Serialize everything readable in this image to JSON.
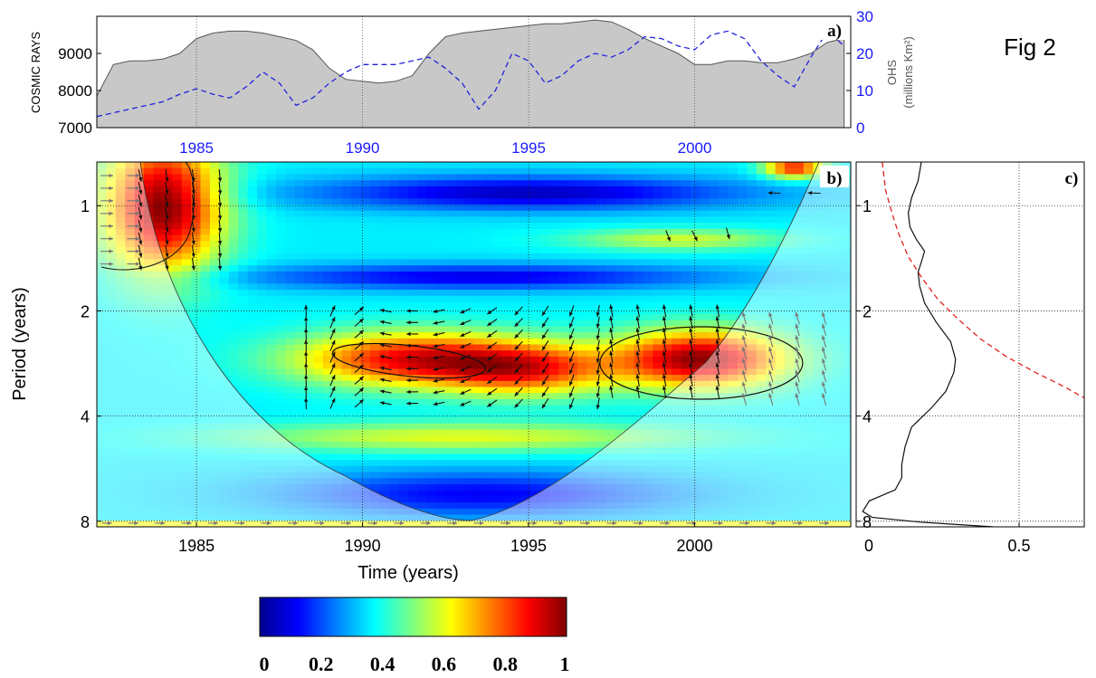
{
  "figure_label": "Fig 2",
  "colors": {
    "cosmic_fill": "#c8c8c8",
    "ohs_line": "#2222dd",
    "axis_blue": "#1a1aff",
    "arrow": "#111111",
    "coi_arrow": "#777777",
    "red_dashed": "#e02020"
  },
  "chart_data": [
    {
      "panel": "a)",
      "type": "area",
      "x": [
        1982,
        1982.5,
        1983,
        1983.5,
        1984,
        1984.5,
        1985,
        1985.5,
        1986,
        1986.5,
        1987,
        1987.5,
        1988,
        1988.5,
        1989,
        1989.5,
        1990,
        1990.5,
        1991,
        1991.5,
        1992,
        1992.5,
        1993,
        1993.5,
        1994,
        1994.5,
        1995,
        1995.5,
        1996,
        1996.5,
        1997,
        1997.5,
        1998,
        1998.5,
        1999,
        1999.5,
        2000,
        2000.5,
        2001,
        2001.5,
        2002,
        2002.5,
        2003,
        2003.5,
        2004,
        2004.5
      ],
      "series": [
        {
          "name": "COSMIC RAYS",
          "axis": "left",
          "style": "filled-area",
          "values": [
            7850,
            8700,
            8800,
            8800,
            8850,
            9000,
            9400,
            9550,
            9600,
            9600,
            9550,
            9450,
            9350,
            9100,
            8600,
            8300,
            8250,
            8200,
            8250,
            8400,
            9000,
            9450,
            9550,
            9600,
            9650,
            9700,
            9750,
            9800,
            9800,
            9850,
            9900,
            9850,
            9650,
            9400,
            9200,
            9000,
            8700,
            8700,
            8800,
            8800,
            8750,
            8750,
            8850,
            9000,
            9300,
            9400
          ]
        },
        {
          "name": "OHS",
          "axis": "right",
          "style": "dashed-line",
          "values": [
            3,
            4,
            5,
            6,
            7,
            9,
            10.5,
            9,
            8,
            11,
            15,
            12,
            6,
            8,
            12,
            15,
            17,
            17,
            17,
            18,
            19,
            16,
            12,
            5,
            10,
            20,
            18,
            12,
            14,
            18,
            20,
            19,
            21,
            24.5,
            24,
            22,
            21,
            25,
            26,
            24,
            18,
            14,
            11,
            19,
            26,
            22
          ]
        }
      ],
      "ylabel": "COSMIC RAYS",
      "ylim": [
        7000,
        10000
      ],
      "yticks": [
        7000,
        8000,
        9000
      ],
      "y2label_line1": "OHS",
      "y2label_line2": "(millions Km²)",
      "y2lim": [
        0,
        30
      ],
      "y2ticks": [
        0,
        10,
        20,
        30
      ],
      "xlim": [
        1982,
        2004.7
      ],
      "xticks": [
        1985,
        1990,
        1995,
        2000
      ],
      "grid": true
    },
    {
      "panel": "b)",
      "type": "heatmap",
      "xlabel": "Time (years)",
      "ylabel": "Period (years)",
      "xlim": [
        1982,
        2004.7
      ],
      "ylim": [
        0.75,
        8.3
      ],
      "yscale": "log",
      "xticks": [
        1985,
        1990,
        1995,
        2000
      ],
      "yticks": [
        1,
        2,
        4,
        8
      ],
      "colorbar": {
        "min": 0,
        "max": 1,
        "ticks": [
          0,
          0.2,
          0.4,
          0.6,
          0.8,
          1
        ],
        "tick_labels": [
          "0",
          "0.2",
          "0.4",
          "0.6",
          "0.8",
          "1"
        ]
      },
      "features": [
        {
          "kind": "high-coherence",
          "x_range": [
            1982.5,
            1985.5
          ],
          "period_range": [
            0.75,
            1.6
          ],
          "value": 0.9
        },
        {
          "kind": "high-coherence",
          "x_range": [
            1988,
            1997
          ],
          "period_range": [
            2.0,
            3.7
          ],
          "value": 0.75
        },
        {
          "kind": "high-coherence",
          "x_range": [
            1997,
            2004.5
          ],
          "period_range": [
            2.1,
            3.6
          ],
          "value": 0.85
        },
        {
          "kind": "significance-contour",
          "center_x": 1991.3,
          "center_period": 2.78
        },
        {
          "kind": "significance-contour",
          "center_x": 2000.2,
          "center_period": 2.8
        }
      ],
      "grid": true
    },
    {
      "panel": "c)",
      "type": "line",
      "xlim": [
        0,
        0.7
      ],
      "xticks": [
        0,
        0.5
      ],
      "ylim": [
        0.75,
        8.3
      ],
      "yscale": "log",
      "yticks": [
        1,
        2,
        4,
        8
      ],
      "series": [
        {
          "style": "solid",
          "x": [
            0.2,
            0.19,
            0.17,
            0.16,
            0.165,
            0.185,
            0.21,
            0.2,
            0.19,
            0.195,
            0.21,
            0.245,
            0.29,
            0.305,
            0.3,
            0.275,
            0.23,
            0.17,
            0.15,
            0.14,
            0.14,
            0.12,
            0.04,
            0.02,
            0.05,
            0.2,
            0.42
          ],
          "y": [
            0.75,
            0.85,
            0.95,
            1.05,
            1.15,
            1.25,
            1.35,
            1.45,
            1.55,
            1.7,
            1.9,
            2.15,
            2.45,
            2.75,
            3.0,
            3.4,
            3.8,
            4.3,
            4.9,
            5.5,
            6.0,
            6.5,
            7.0,
            7.5,
            7.8,
            8.05,
            8.3
          ]
        },
        {
          "style": "dashed",
          "x": [
            0.08,
            0.09,
            0.11,
            0.13,
            0.16,
            0.2,
            0.25,
            0.31,
            0.38,
            0.46,
            0.55,
            0.64,
            0.7
          ],
          "y": [
            0.75,
            0.9,
            1.05,
            1.2,
            1.4,
            1.6,
            1.85,
            2.1,
            2.4,
            2.7,
            3.0,
            3.3,
            3.55
          ]
        }
      ],
      "grid": true
    }
  ]
}
